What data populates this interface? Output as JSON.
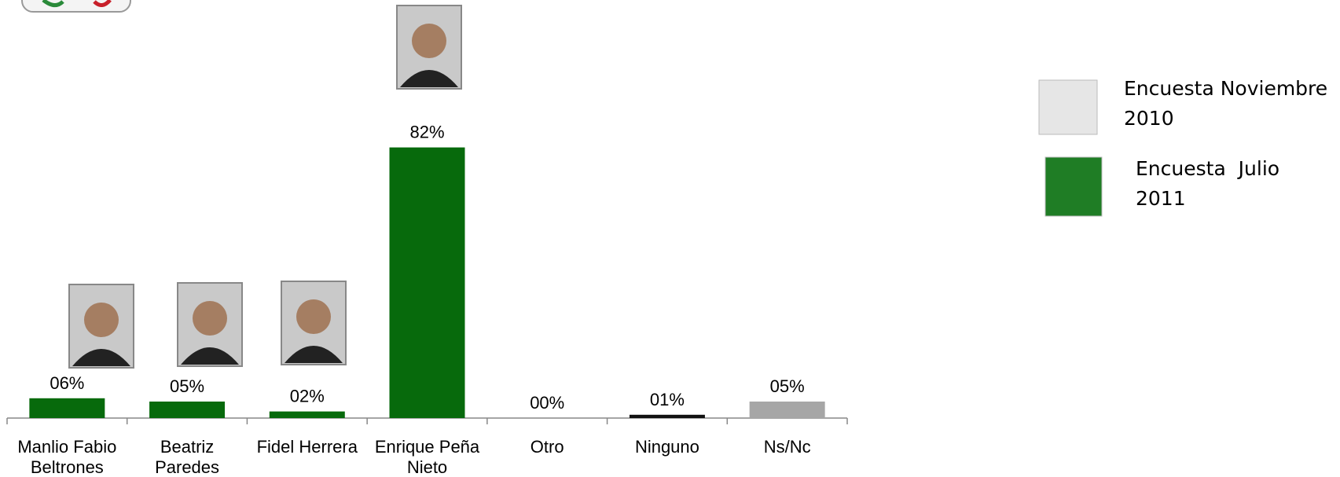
{
  "chart_data": {
    "type": "bar",
    "categories": [
      "Manlio Fabio Beltrones",
      "Beatriz Paredes",
      "Fidel Herrera",
      "Enrique Peña Nieto",
      "Otro",
      "Ninguno",
      "Ns/Nc"
    ],
    "values": [
      6,
      5,
      2,
      82,
      0,
      1,
      5
    ],
    "value_labels": [
      "06%",
      "05%",
      "02%",
      "82%",
      "00%",
      "01%",
      "05%"
    ],
    "colors": [
      "#076a0c",
      "#076a0c",
      "#076a0c",
      "#076a0c",
      "#076a0c",
      "#111111",
      "#a6a6a6"
    ],
    "legend": [
      {
        "name": "Encuesta Noviembre 2010",
        "color": "#e6e6e6"
      },
      {
        "name": "Encuesta  Julio 2011",
        "color": "#1f7d25"
      }
    ]
  }
}
